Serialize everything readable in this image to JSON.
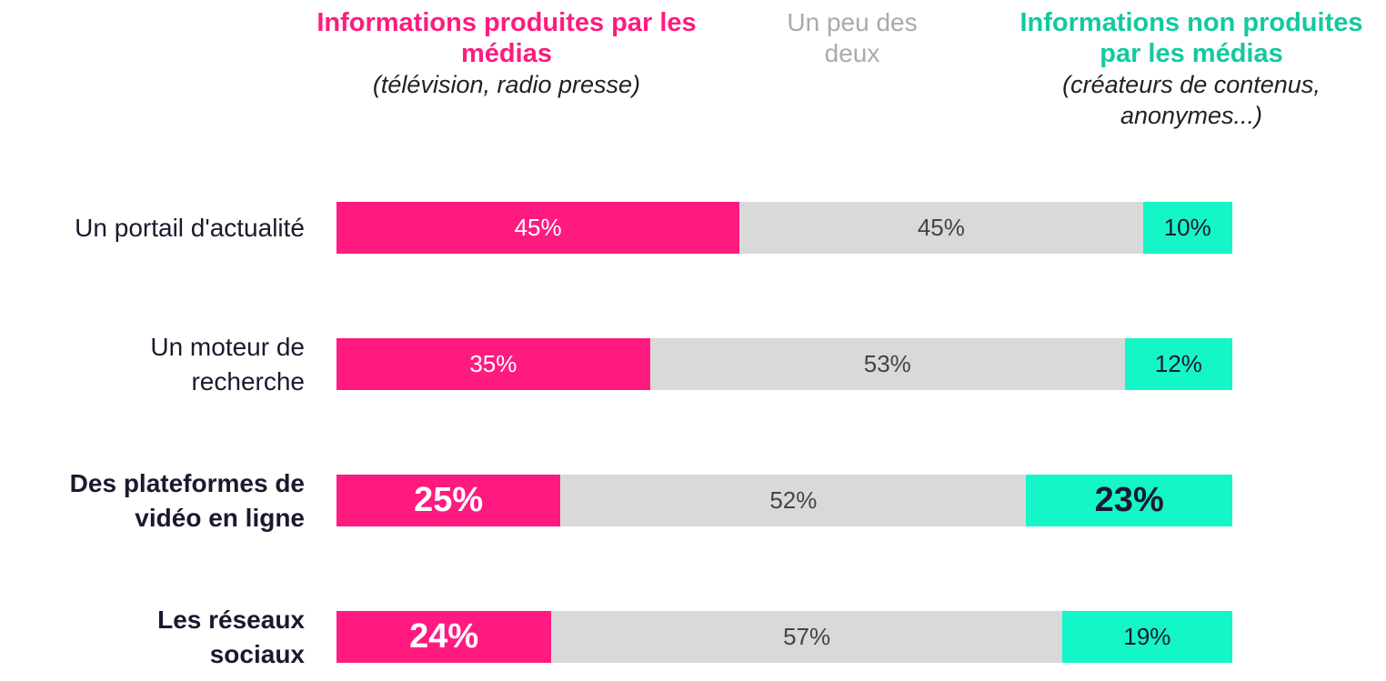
{
  "chart_data": {
    "type": "stacked_bar_100",
    "categories": [
      "Un portail d'actualité",
      "Un moteur de\nrecherche",
      "Des plateformes de\nvidéo en ligne",
      "Les réseaux\nsociaux"
    ],
    "xlim": [
      0,
      100
    ],
    "series": [
      {
        "name": "Informations produites par les médias",
        "subtitle": "(télévision, radio presse)",
        "color": "#ff1a80",
        "values": [
          45,
          35,
          25,
          24
        ],
        "value_labels": [
          "45%",
          "35%",
          "25%",
          "24%"
        ]
      },
      {
        "name": "Un peu des deux",
        "color": "#d9d9d9",
        "values": [
          45,
          53,
          52,
          57
        ],
        "value_labels": [
          "45%",
          "53%",
          "52%",
          "57%"
        ]
      },
      {
        "name": "Informations non produites par les médias",
        "subtitle": "(créateurs de contenus, anonymes...)",
        "color": "#14f5c8",
        "values": [
          10,
          12,
          23,
          19
        ],
        "value_labels": [
          "10%",
          "12%",
          "23%",
          "19%"
        ]
      }
    ]
  }
}
